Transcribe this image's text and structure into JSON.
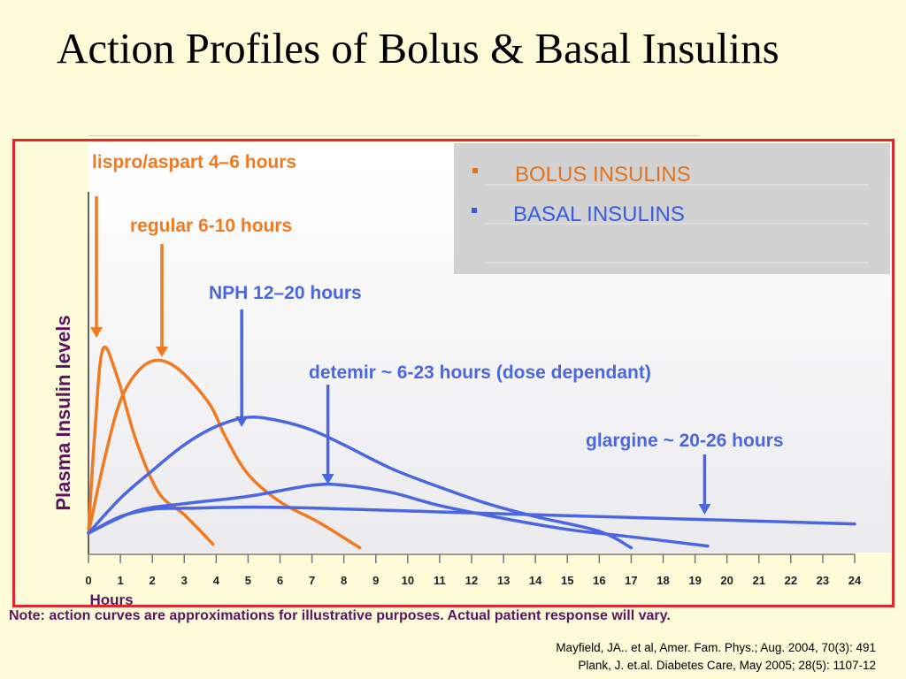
{
  "title": "Action Profiles of Bolus & Basal Insulins",
  "note": "Note: action curves are approximations for illustrative purposes.  Actual patient response will vary.",
  "references": [
    "Mayfield, JA.. et al, Amer. Fam. Phys.; Aug. 2004, 70(3): 491",
    "Plank, J. et.al. Diabetes Care, May 2005; 28(5): 1107-12"
  ],
  "legend": {
    "items": [
      {
        "label": "BOLUS INSULINS",
        "color": "#e2721e"
      },
      {
        "label": "BASAL INSULINS",
        "color": "#3a5be0"
      }
    ],
    "background": "#d2d2d2"
  },
  "colors": {
    "bolus": "#f07a22",
    "basal": "#4a66e0",
    "frame": "#e0282c",
    "ylabel": "#5a1560",
    "background": "#fdfbd8"
  },
  "chart_data": {
    "type": "line",
    "xlabel": "Hours",
    "ylabel": "Plasma Insulin levels",
    "xlim": [
      0,
      24
    ],
    "ylim": [
      0,
      100
    ],
    "x_ticks": [
      0,
      1,
      2,
      3,
      4,
      5,
      6,
      7,
      8,
      9,
      10,
      11,
      12,
      13,
      14,
      15,
      16,
      17,
      18,
      19,
      20,
      21,
      22,
      23,
      24
    ],
    "series": [
      {
        "group": "bolus",
        "annotation": "lispro/aspart 4–6 hours",
        "arrow_x": 0.25,
        "points": [
          [
            0,
            0
          ],
          [
            0.2,
            55
          ],
          [
            0.45,
            100
          ],
          [
            0.9,
            85
          ],
          [
            1.5,
            50
          ],
          [
            2.2,
            22
          ],
          [
            3,
            10
          ],
          [
            3.9,
            -6
          ]
        ]
      },
      {
        "group": "bolus",
        "annotation": "regular 6-10 hours",
        "arrow_x": 2.3,
        "points": [
          [
            0,
            0
          ],
          [
            0.5,
            40
          ],
          [
            1,
            72
          ],
          [
            1.6,
            89
          ],
          [
            2.2,
            94
          ],
          [
            2.9,
            88
          ],
          [
            3.8,
            70
          ],
          [
            4.3,
            52
          ],
          [
            5,
            32
          ],
          [
            6,
            17
          ],
          [
            7.2,
            6
          ],
          [
            8.5,
            -8
          ]
        ]
      },
      {
        "group": "basal",
        "annotation": "NPH 12–20 hours",
        "arrow_x": 4.8,
        "points": [
          [
            0,
            0
          ],
          [
            1,
            19
          ],
          [
            2,
            34
          ],
          [
            3,
            48
          ],
          [
            4,
            58
          ],
          [
            5,
            63
          ],
          [
            6,
            61
          ],
          [
            7,
            56
          ],
          [
            8,
            48
          ],
          [
            9.5,
            35
          ],
          [
            11,
            25
          ],
          [
            12.5,
            16
          ],
          [
            14,
            9
          ],
          [
            16,
            1
          ],
          [
            17,
            -8
          ]
        ]
      },
      {
        "group": "basal",
        "annotation": "detemir ~ 6-23 hours (dose dependant)",
        "arrow_x": 7.5,
        "points": [
          [
            0,
            0
          ],
          [
            1.5,
            12
          ],
          [
            3,
            16
          ],
          [
            5,
            20
          ],
          [
            7,
            26
          ],
          [
            8,
            26
          ],
          [
            9.5,
            22
          ],
          [
            11,
            15
          ],
          [
            13,
            8
          ],
          [
            15,
            2
          ],
          [
            17,
            -2
          ],
          [
            19.4,
            -7
          ]
        ]
      },
      {
        "group": "basal",
        "annotation": "glargine ~ 20-26 hours",
        "arrow_x": 19.3,
        "points": [
          [
            0,
            0
          ],
          [
            1,
            9
          ],
          [
            2,
            13
          ],
          [
            3,
            13.5
          ],
          [
            6,
            14
          ],
          [
            12,
            11
          ],
          [
            18,
            8
          ],
          [
            24,
            5
          ]
        ]
      }
    ]
  }
}
